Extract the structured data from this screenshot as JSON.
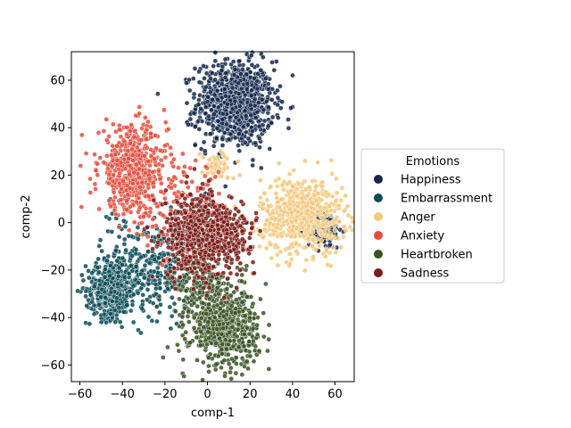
{
  "chart_data": {
    "type": "scatter",
    "xlabel": "comp-1",
    "ylabel": "comp-2",
    "xlim": [
      -64,
      69
    ],
    "ylim": [
      -67,
      72
    ],
    "xticks": [
      -60,
      -40,
      -20,
      0,
      20,
      40,
      60
    ],
    "yticks": [
      -60,
      -40,
      -20,
      0,
      20,
      40,
      60
    ],
    "grid": false,
    "legend": {
      "title": "Emotions",
      "placement": "center-right",
      "entries": [
        "Happiness",
        "Embarrassment",
        "Anger",
        "Anxiety",
        "Heartbroken",
        "Sadness"
      ]
    },
    "series": [
      {
        "name": "Happiness",
        "color": "#13284b",
        "clusters": [
          {
            "center": [
              13,
              50
            ],
            "spread": [
              9,
              9
            ],
            "count": 900
          },
          {
            "center": [
              55,
              -3
            ],
            "spread": [
              4,
              4
            ],
            "count": 120
          }
        ]
      },
      {
        "name": "Embarrassment",
        "color": "#0b4b57",
        "clusters": [
          {
            "center": [
              -45,
              -28
            ],
            "spread": [
              6,
              6
            ],
            "count": 450
          },
          {
            "center": [
              -22,
              -20
            ],
            "spread": [
              8,
              10
            ],
            "count": 250
          },
          {
            "center": [
              -40,
              -10
            ],
            "spread": [
              5,
              8
            ],
            "count": 60
          }
        ]
      },
      {
        "name": "Anger",
        "color": "#f5c87a",
        "clusters": [
          {
            "center": [
              45,
              3
            ],
            "spread": [
              10,
              8
            ],
            "count": 600
          },
          {
            "center": [
              5,
              24
            ],
            "spread": [
              4,
              3
            ],
            "count": 60
          }
        ]
      },
      {
        "name": "Anxiety",
        "color": "#e74c3c",
        "clusters": [
          {
            "center": [
              -35,
              22
            ],
            "spread": [
              8,
              9
            ],
            "count": 550
          },
          {
            "center": [
              -10,
              5
            ],
            "spread": [
              10,
              10
            ],
            "count": 120
          }
        ]
      },
      {
        "name": "Heartbroken",
        "color": "#3a5223",
        "clusters": [
          {
            "center": [
              8,
              -45
            ],
            "spread": [
              8,
              8
            ],
            "count": 550
          },
          {
            "center": [
              0,
              -28
            ],
            "spread": [
              9,
              6
            ],
            "count": 200
          }
        ]
      },
      {
        "name": "Sadness",
        "color": "#7a1a15",
        "clusters": [
          {
            "center": [
              -5,
              -5
            ],
            "spread": [
              8,
              9
            ],
            "count": 500
          },
          {
            "center": [
              10,
              -5
            ],
            "spread": [
              6,
              6
            ],
            "count": 200
          }
        ]
      }
    ]
  }
}
